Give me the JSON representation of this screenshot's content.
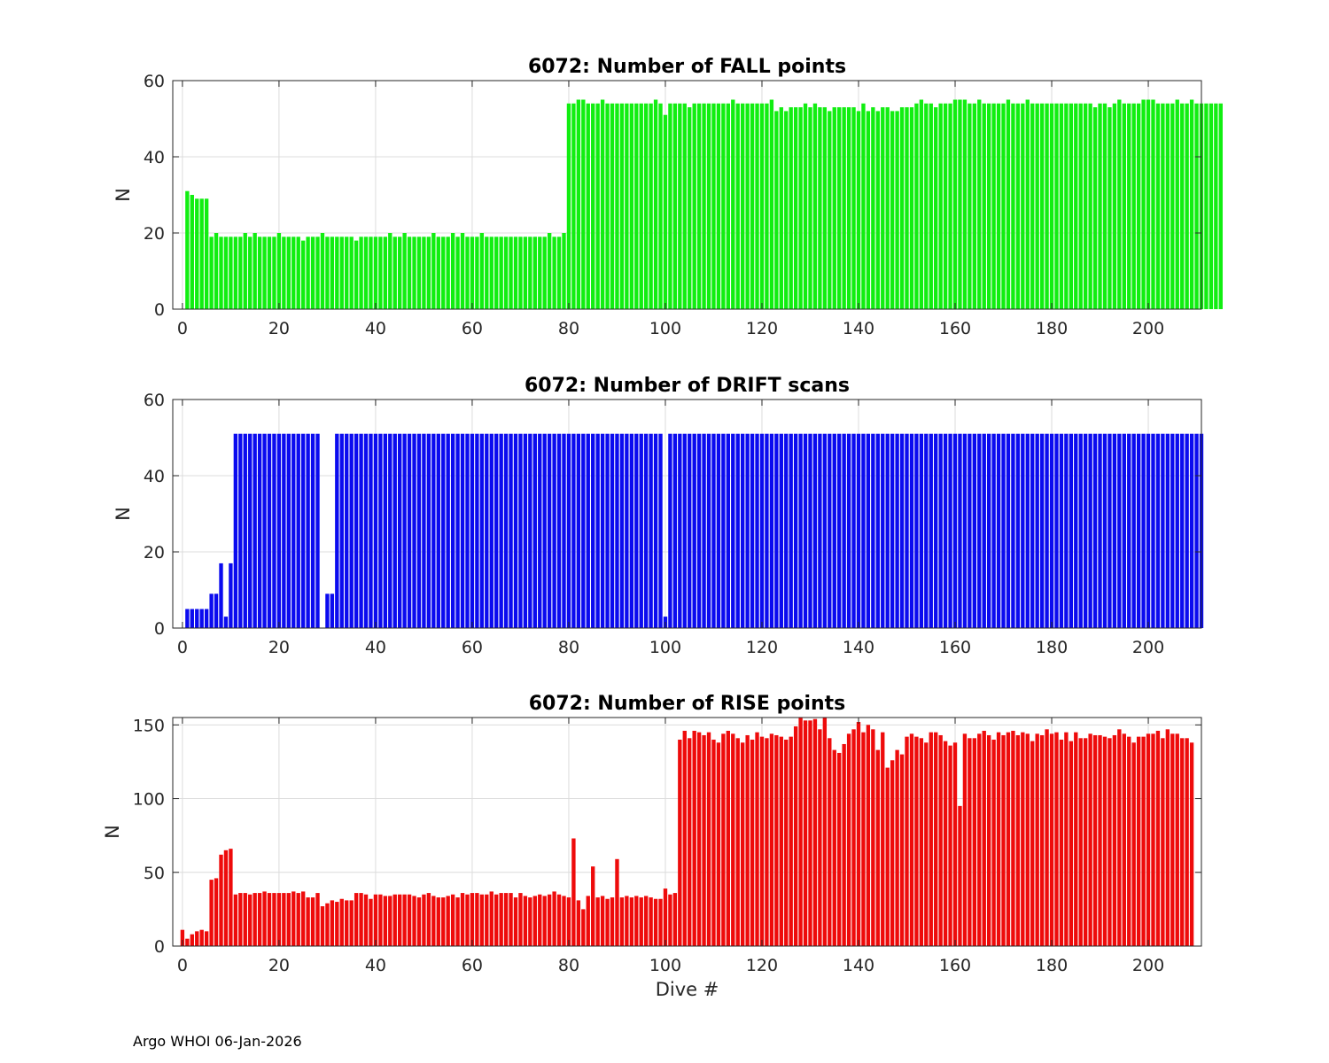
{
  "footer": "Argo WHOI 06-Jan-2026",
  "chart_data": [
    {
      "type": "bar",
      "title": "6072: Number of FALL points",
      "ylabel": "N",
      "xlabel": "",
      "xlim": [
        -2,
        211
      ],
      "ylim": [
        0,
        60
      ],
      "xticks": [
        0,
        20,
        40,
        60,
        80,
        100,
        120,
        140,
        160,
        180,
        200
      ],
      "yticks": [
        0,
        20,
        40,
        60
      ],
      "grid": true,
      "color": "#11ee11",
      "x_start": 1,
      "values": [
        31,
        30,
        29,
        29,
        29,
        19,
        20,
        19,
        19,
        19,
        19,
        19,
        20,
        19,
        20,
        19,
        19,
        19,
        19,
        20,
        19,
        19,
        19,
        19,
        18,
        19,
        19,
        19,
        20,
        19,
        19,
        19,
        19,
        19,
        19,
        18,
        19,
        19,
        19,
        19,
        19,
        19,
        20,
        19,
        19,
        20,
        19,
        19,
        19,
        19,
        19,
        20,
        19,
        19,
        19,
        20,
        19,
        20,
        19,
        19,
        19,
        20,
        19,
        19,
        19,
        19,
        19,
        19,
        19,
        19,
        19,
        19,
        19,
        19,
        19,
        20,
        19,
        19,
        20,
        54,
        54,
        55,
        55,
        54,
        54,
        54,
        55,
        54,
        54,
        54,
        54,
        54,
        54,
        54,
        54,
        54,
        54,
        55,
        54,
        51,
        54,
        54,
        54,
        54,
        53,
        54,
        54,
        54,
        54,
        54,
        54,
        54,
        54,
        55,
        54,
        54,
        54,
        54,
        54,
        54,
        54,
        55,
        52,
        53,
        52,
        53,
        53,
        53,
        54,
        53,
        54,
        53,
        53,
        52,
        53,
        53,
        53,
        53,
        53,
        52,
        54,
        52,
        53,
        52,
        53,
        53,
        52,
        52,
        53,
        53,
        53,
        54,
        55,
        54,
        54,
        53,
        54,
        54,
        54,
        55,
        55,
        55,
        54,
        54,
        55,
        54,
        54,
        54,
        54,
        54,
        55,
        54,
        54,
        54,
        55,
        54,
        54,
        54,
        54,
        54,
        54,
        54,
        54,
        54,
        54,
        54,
        54,
        54,
        53,
        54,
        54,
        53,
        54,
        55,
        54,
        54,
        54,
        54,
        55,
        55,
        55,
        54,
        54,
        54,
        54,
        55,
        54,
        54,
        55,
        54,
        54,
        54,
        54,
        54,
        54
      ]
    },
    {
      "type": "bar",
      "title": "6072: Number of DRIFT scans",
      "ylabel": "N",
      "xlabel": "",
      "xlim": [
        -2,
        211
      ],
      "ylim": [
        0,
        60
      ],
      "xticks": [
        0,
        20,
        40,
        60,
        80,
        100,
        120,
        140,
        160,
        180,
        200
      ],
      "yticks": [
        0,
        20,
        40,
        60
      ],
      "grid": true,
      "color": "#0b0bef",
      "x_start": 1,
      "values": [
        5,
        5,
        5,
        5,
        5,
        9,
        9,
        17,
        3,
        17,
        51,
        51,
        51,
        51,
        51,
        51,
        51,
        51,
        51,
        51,
        51,
        51,
        51,
        51,
        51,
        51,
        51,
        51,
        0,
        9,
        9,
        51,
        51,
        51,
        51,
        51,
        51,
        51,
        51,
        51,
        51,
        51,
        51,
        51,
        51,
        51,
        51,
        51,
        51,
        51,
        51,
        51,
        51,
        51,
        51,
        51,
        51,
        51,
        51,
        51,
        51,
        51,
        51,
        51,
        51,
        51,
        51,
        51,
        51,
        51,
        51,
        51,
        51,
        51,
        51,
        51,
        51,
        51,
        51,
        51,
        51,
        51,
        51,
        51,
        51,
        51,
        51,
        51,
        51,
        51,
        51,
        51,
        51,
        51,
        51,
        51,
        51,
        51,
        51,
        3,
        51,
        51,
        51,
        51,
        51,
        51,
        51,
        51,
        51,
        51,
        51,
        51,
        51,
        51,
        51,
        51,
        51,
        51,
        51,
        51,
        51,
        51,
        51,
        51,
        51,
        51,
        51,
        51,
        51,
        51,
        51,
        51,
        51,
        51,
        51,
        51,
        51,
        51,
        51,
        51,
        51,
        51,
        51,
        51,
        51,
        51,
        51,
        51,
        51,
        51,
        51,
        51,
        51,
        51,
        51,
        51,
        51,
        51,
        51,
        51,
        51,
        51,
        51,
        51,
        51,
        51,
        51,
        51,
        51,
        51,
        51,
        51,
        51,
        51,
        51,
        51,
        51,
        51,
        51,
        51,
        51,
        51,
        51,
        51,
        51,
        51,
        51,
        51,
        51,
        51,
        51,
        51,
        51,
        51,
        51,
        51,
        51,
        51,
        51,
        51,
        51,
        51,
        51,
        51,
        51,
        51,
        51,
        51,
        51,
        51,
        51
      ]
    },
    {
      "type": "bar",
      "title": "6072: Number of RISE points",
      "ylabel": "N",
      "xlabel": "Dive #",
      "xlim": [
        -2,
        211
      ],
      "ylim": [
        0,
        155
      ],
      "xticks": [
        0,
        20,
        40,
        60,
        80,
        100,
        120,
        140,
        160,
        180,
        200
      ],
      "yticks": [
        0,
        50,
        100,
        150
      ],
      "grid": true,
      "color": "#ee0b0b",
      "x_start": 0,
      "values": [
        11,
        5,
        8,
        10,
        11,
        10,
        45,
        46,
        62,
        65,
        66,
        35,
        36,
        36,
        35,
        36,
        36,
        37,
        36,
        36,
        36,
        36,
        36,
        37,
        36,
        37,
        33,
        33,
        36,
        27,
        29,
        31,
        30,
        32,
        31,
        31,
        36,
        36,
        35,
        32,
        35,
        35,
        34,
        34,
        35,
        35,
        35,
        35,
        34,
        33,
        35,
        36,
        34,
        33,
        33,
        34,
        35,
        33,
        36,
        35,
        36,
        36,
        35,
        35,
        37,
        35,
        36,
        36,
        36,
        33,
        36,
        34,
        33,
        34,
        35,
        34,
        35,
        37,
        35,
        34,
        33,
        73,
        31,
        25,
        34,
        54,
        33,
        34,
        32,
        33,
        59,
        33,
        34,
        33,
        34,
        33,
        34,
        33,
        32,
        32,
        39,
        35,
        36,
        140,
        146,
        141,
        146,
        145,
        143,
        145,
        140,
        138,
        144,
        146,
        144,
        141,
        138,
        143,
        140,
        145,
        142,
        141,
        144,
        143,
        142,
        140,
        142,
        149,
        155,
        153,
        153,
        154,
        147,
        155,
        141,
        133,
        131,
        137,
        144,
        147,
        152,
        145,
        150,
        147,
        133,
        145,
        121,
        126,
        133,
        130,
        142,
        144,
        142,
        141,
        138,
        145,
        145,
        143,
        139,
        136,
        138,
        95,
        144,
        141,
        141,
        144,
        146,
        143,
        140,
        145,
        143,
        145,
        146,
        143,
        145,
        144,
        139,
        144,
        143,
        147,
        144,
        145,
        140,
        145,
        139,
        145,
        141,
        141,
        144,
        143,
        143,
        142,
        141,
        143,
        147,
        144,
        142,
        138,
        142,
        142,
        144,
        144,
        146,
        141,
        147,
        144,
        144,
        141,
        141,
        138
      ]
    }
  ]
}
